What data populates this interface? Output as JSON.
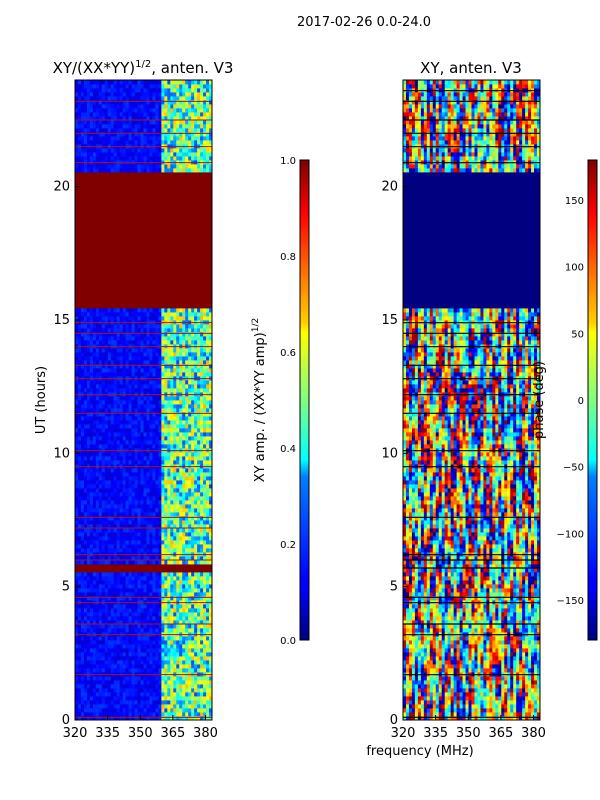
{
  "suptitle": "2017-02-26 0.0-24.0",
  "chart_data": [
    {
      "type": "heatmap",
      "title_base": "XY/(XX*YY)",
      "title_sup": "1/2",
      "title_tail": ", anten. V3",
      "ylabel": "UT (hours)",
      "xlabel": "",
      "xlim": [
        320,
        383
      ],
      "ylim": [
        0,
        24
      ],
      "xticks": [
        320,
        335,
        350,
        365,
        380
      ],
      "yticks": [
        0,
        5,
        10,
        15,
        20
      ],
      "colorbar": {
        "label_base": "XY amp. / (XX*YY amp)",
        "label_sup": "1/2",
        "range": [
          0.0,
          1.0
        ],
        "ticks": [
          "0.0",
          "0.2",
          "0.4",
          "0.6",
          "0.8",
          "1.0"
        ]
      },
      "regions": [
        {
          "from": 0.0,
          "to": 24.0,
          "desc": "low amplitude (~0.1) background, high values at 360-383 MHz"
        },
        {
          "from": 5.6,
          "to": 5.85,
          "desc": "flagged = 1.0"
        },
        {
          "from": 15.5,
          "to": 20.6,
          "desc": "flagged = 1.0"
        },
        {
          "from": 23.4,
          "to": 24.0,
          "desc": "mixed"
        }
      ]
    },
    {
      "type": "heatmap",
      "title_base": "XY, anten. V3",
      "ylabel": "",
      "xlabel": "frequency (MHz)",
      "xlim": [
        320,
        383
      ],
      "ylim": [
        0,
        24
      ],
      "xticks": [
        320,
        335,
        350,
        365,
        380
      ],
      "yticks": [
        0,
        5,
        10,
        15,
        20
      ],
      "colorbar": {
        "label_base": "phase (deg)",
        "range": [
          -180,
          180
        ],
        "ticks": [
          "150",
          "100",
          "50",
          "0",
          "−50",
          "−100",
          "−150"
        ],
        "tick_values": [
          150,
          100,
          50,
          0,
          -50,
          -100,
          -150
        ]
      },
      "regions": [
        {
          "from": 0.0,
          "to": 15.5,
          "desc": "noisy phase, full range"
        },
        {
          "from": 15.5,
          "to": 20.6,
          "desc": "constant -180 deg"
        },
        {
          "from": 20.6,
          "to": 24.0,
          "desc": "noisy phase, full range"
        }
      ]
    }
  ]
}
